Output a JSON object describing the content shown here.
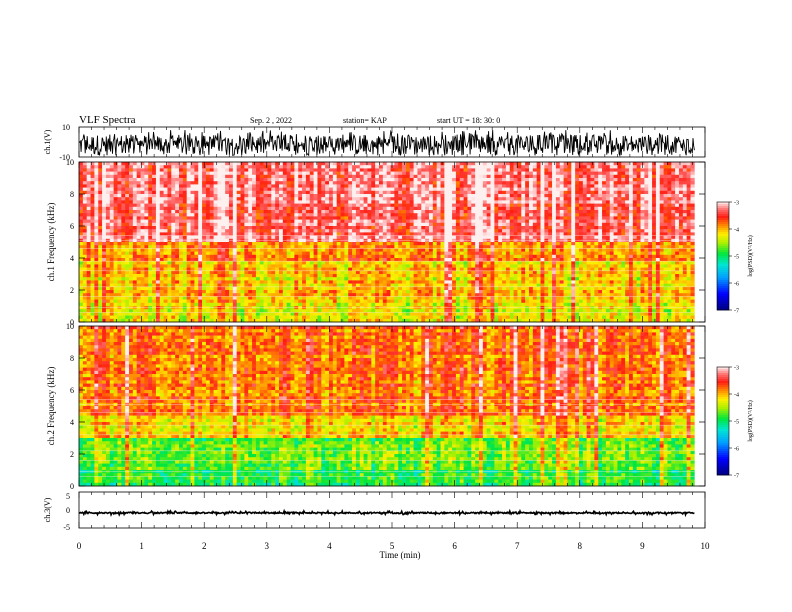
{
  "header": {
    "title": "VLF Spectra",
    "date": "Sep. 2 , 2022",
    "station": "station= KAP",
    "start": "start  UT =  18: 30: 0"
  },
  "chart_data": [
    {
      "type": "line",
      "name": "waveform-ch1",
      "ylabel": "ch.1(V)",
      "ylim": [
        -10,
        10
      ],
      "yticks": [
        "10",
        "-10"
      ],
      "xlim": [
        0,
        10
      ],
      "data_end_x": 9.83,
      "description_values": {
        "baseline": -2,
        "typical_min": -6,
        "typical_max": 8
      }
    },
    {
      "type": "heatmap",
      "name": "spectrogram-ch1",
      "ylabel": "ch.1  Frequency  (kHz)",
      "ylim": [
        0,
        10
      ],
      "yticks": [
        "0",
        "2",
        "4",
        "6",
        "8",
        "10"
      ],
      "xlim": [
        0,
        10
      ],
      "data_end_x": 9.83,
      "colorbar": {
        "label": "log(PSD)(V²/Hz)",
        "range": [
          -7,
          -3
        ],
        "ticks": [
          "-3",
          "-4",
          "-5",
          "-6",
          "-7"
        ]
      },
      "bands": [
        {
          "fmin": 0.0,
          "fmax": 1.3,
          "dominant_level": -4.3
        },
        {
          "fmin": 1.3,
          "fmax": 3.8,
          "dominant_level": -4.1
        },
        {
          "fmin": 3.8,
          "fmax": 5.0,
          "dominant_level": -3.9
        },
        {
          "fmin": 5.0,
          "fmax": 10.0,
          "dominant_level": -3.3
        }
      ]
    },
    {
      "type": "heatmap",
      "name": "spectrogram-ch2",
      "ylabel": "ch.2  Frequency  (kHz)",
      "ylim": [
        0,
        10
      ],
      "yticks": [
        "0",
        "2",
        "4",
        "6",
        "8",
        "10"
      ],
      "xlim": [
        0,
        10
      ],
      "data_end_x": 9.83,
      "colorbar": {
        "label": "log(PSD)(V²/Hz)",
        "range": [
          -7,
          -3
        ],
        "ticks": [
          "-3",
          "-4",
          "-5",
          "-6",
          "-7"
        ]
      },
      "bands": [
        {
          "fmin": 0.0,
          "fmax": 1.0,
          "dominant_level": -5.0
        },
        {
          "fmin": 1.0,
          "fmax": 3.0,
          "dominant_level": -4.7
        },
        {
          "fmin": 3.0,
          "fmax": 4.5,
          "dominant_level": -4.2
        },
        {
          "fmin": 4.5,
          "fmax": 10.0,
          "dominant_level": -3.8
        }
      ]
    },
    {
      "type": "line",
      "name": "waveform-ch3",
      "ylabel": "ch.3(V)",
      "ylim": [
        -5,
        5
      ],
      "yticks": [
        "5",
        "0",
        "-5"
      ],
      "xlim": [
        0,
        10
      ],
      "data_end_x": 9.83,
      "description_values": {
        "baseline": -0.8,
        "typical_min": -1.3,
        "typical_max": -0.3
      }
    }
  ],
  "xaxis": {
    "label": "Time  (min)",
    "ticks": [
      "0",
      "1",
      "2",
      "3",
      "4",
      "5",
      "6",
      "7",
      "8",
      "9",
      "10"
    ]
  }
}
